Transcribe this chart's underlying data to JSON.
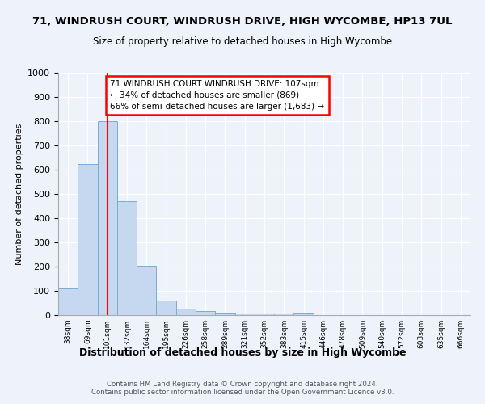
{
  "title": "71, WINDRUSH COURT, WINDRUSH DRIVE, HIGH WYCOMBE, HP13 7UL",
  "subtitle": "Size of property relative to detached houses in High Wycombe",
  "xlabel": "Distribution of detached houses by size in High Wycombe",
  "ylabel": "Number of detached properties",
  "bin_labels": [
    "38sqm",
    "69sqm",
    "101sqm",
    "132sqm",
    "164sqm",
    "195sqm",
    "226sqm",
    "258sqm",
    "289sqm",
    "321sqm",
    "352sqm",
    "383sqm",
    "415sqm",
    "446sqm",
    "478sqm",
    "509sqm",
    "540sqm",
    "572sqm",
    "603sqm",
    "635sqm",
    "666sqm"
  ],
  "bar_values": [
    110,
    625,
    800,
    470,
    205,
    60,
    27,
    18,
    10,
    8,
    8,
    8,
    10,
    0,
    0,
    0,
    0,
    0,
    0,
    0,
    0
  ],
  "bar_color": "#c5d8f0",
  "bar_edgecolor": "#7aadd4",
  "property_line_x": 2,
  "property_line_color": "red",
  "annotation_text": "71 WINDRUSH COURT WINDRUSH DRIVE: 107sqm\n← 34% of detached houses are smaller (869)\n66% of semi-detached houses are larger (1,683) →",
  "annotation_box_color": "white",
  "annotation_box_edgecolor": "red",
  "footnote": "Contains HM Land Registry data © Crown copyright and database right 2024.\nContains public sector information licensed under the Open Government Licence v3.0.",
  "ylim": [
    0,
    1000
  ],
  "yticks": [
    0,
    100,
    200,
    300,
    400,
    500,
    600,
    700,
    800,
    900,
    1000
  ],
  "bg_color": "#eef2fb",
  "grid_color": "#ffffff",
  "title_fontsize": 9.5,
  "subtitle_fontsize": 8.5
}
